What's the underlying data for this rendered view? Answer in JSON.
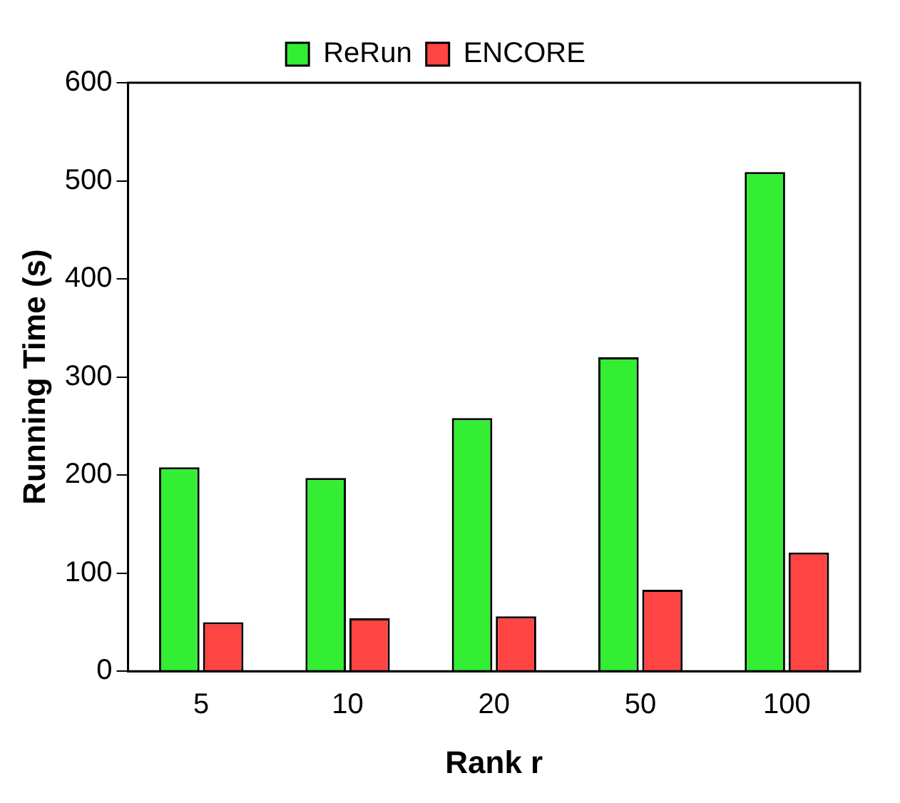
{
  "chart_data": {
    "type": "bar",
    "xlabel": "Rank r",
    "ylabel": "Running Time (s)",
    "categories": [
      "5",
      "10",
      "20",
      "50",
      "100"
    ],
    "series": [
      {
        "name": "ReRun",
        "color": "#33ee33",
        "values": [
          208,
          197,
          258,
          320,
          509
        ]
      },
      {
        "name": "ENCORE",
        "color": "#ff4444",
        "values": [
          50,
          54,
          56,
          83,
          121
        ]
      }
    ],
    "ylim": [
      0,
      600
    ],
    "yticks": [
      0,
      100,
      200,
      300,
      400,
      500,
      600
    ],
    "grid": false,
    "legend": "top"
  }
}
